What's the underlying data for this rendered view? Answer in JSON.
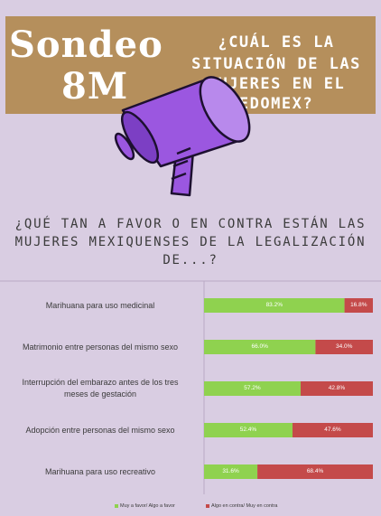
{
  "header": {
    "brand_line1": "Sondeo",
    "brand_line2": "8M",
    "question_lines": [
      "¿CUÁL ES LA",
      "SITUACIÓN DE LAS",
      "MUJERES EN EL",
      "EDOMEX?"
    ]
  },
  "icons": {
    "megaphone": "megaphone-icon"
  },
  "colors": {
    "background": "#d9cde2",
    "banner": "#b58f5c",
    "favor": "#8fd24f",
    "contra": "#c44a4a",
    "megaphone": "#9b57e0"
  },
  "chart_data": {
    "type": "bar",
    "orientation": "horizontal",
    "stacked": true,
    "title_lines": [
      "¿QUÉ TAN A FAVOR O EN CONTRA  ESTÁN LAS",
      "MUJERES MEXIQUENSES DE LA LEGALIZACIÓN",
      "DE...?"
    ],
    "categories": [
      [
        "Marihuana para uso medicinal"
      ],
      [
        "Matrimonio entre personas del mismo sexo"
      ],
      [
        "Interrupción del embarazo antes de los tres",
        "meses de gestación"
      ],
      [
        "Adopción entre personas del mismo sexo"
      ],
      [
        "Marihuana para uso recreativo"
      ]
    ],
    "series": [
      {
        "name": "Muy a favor/ Algo a favor",
        "values": [
          83.2,
          66.0,
          57.2,
          52.4,
          31.6
        ],
        "labels": [
          "83.2%",
          "66.0%",
          "57.2%",
          "52.4%",
          "31.6%"
        ],
        "color": "#8fd24f"
      },
      {
        "name": "Algo en contra/ Muy en contra",
        "values": [
          16.8,
          34.0,
          42.8,
          47.6,
          68.4
        ],
        "labels": [
          "16.8%",
          "34.0%",
          "42.8%",
          "47.6%",
          "68.4%"
        ],
        "color": "#c44a4a"
      }
    ],
    "xlim": [
      0,
      100
    ],
    "grid": false,
    "legend_position": "bottom"
  }
}
